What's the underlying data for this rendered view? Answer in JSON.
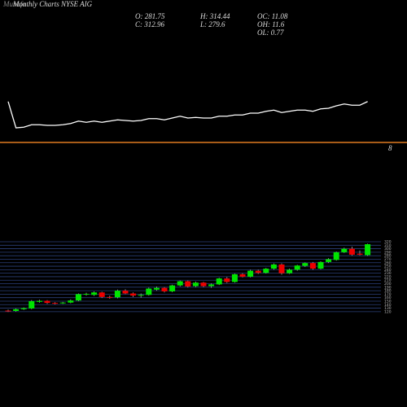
{
  "header": {
    "brand": "Munafa",
    "title": "Monthly Charts NYSE AIG",
    "stats": [
      {
        "label": "O:",
        "value": 281.75
      },
      {
        "label": "H:",
        "value": 314.44
      },
      {
        "label": "OC:",
        "value": 11.08
      },
      {
        "label": "C:",
        "value": 312.96
      },
      {
        "label": "L:",
        "value": 279.6
      },
      {
        "label": "OH:",
        "value": 11.6
      },
      {
        "label": "OL:",
        "value": 0.77
      }
    ]
  },
  "chart_data": [
    {
      "type": "line",
      "color": "#ffffff",
      "ylim": [
        0,
        100
      ],
      "annotation": "8",
      "values": [
        67,
        24,
        25,
        29,
        29,
        28,
        28,
        29,
        31,
        35,
        33,
        35,
        33,
        35,
        37,
        36,
        35,
        36,
        39,
        39,
        37,
        40,
        43,
        40,
        41,
        40,
        40,
        43,
        43,
        45,
        45,
        48,
        48,
        51,
        53,
        49,
        51,
        53,
        53,
        51,
        55,
        56,
        60,
        63,
        61,
        61,
        67
      ]
    },
    {
      "type": "candlestick",
      "up_color": "#00e400",
      "down_color": "#ee0000",
      "grid": true,
      "ylim": [
        115,
        320
      ],
      "yticks": [
        120,
        130,
        140,
        150,
        160,
        170,
        180,
        190,
        200,
        210,
        220,
        230,
        240,
        250,
        260,
        270,
        280,
        290,
        300,
        310,
        320
      ],
      "open": [
        123,
        122,
        127,
        129,
        148,
        151,
        145,
        144,
        146,
        152,
        170,
        168,
        175,
        162,
        161,
        180,
        172,
        166,
        168,
        183,
        188,
        178,
        195,
        207,
        193,
        203,
        193,
        198,
        215,
        205,
        227,
        220,
        237,
        231,
        243,
        255,
        230,
        240,
        251,
        259,
        243,
        262,
        268,
        290,
        300,
        286,
        281.75
      ],
      "high": [
        126,
        129,
        132,
        153,
        154,
        153,
        147,
        148,
        155,
        172,
        174,
        178,
        177,
        166,
        183,
        184,
        175,
        172,
        189,
        192,
        190,
        197,
        209,
        209,
        206,
        205,
        201,
        217,
        219,
        229,
        230,
        240,
        240,
        245,
        258,
        258,
        243,
        254,
        261,
        262,
        264,
        273,
        292,
        303,
        306,
        295,
        314.44
      ],
      "low": [
        119,
        120,
        125,
        127,
        146,
        142,
        141,
        142,
        144,
        150,
        166,
        165,
        159,
        157,
        158,
        170,
        162,
        160,
        166,
        180,
        175,
        176,
        192,
        189,
        190,
        190,
        188,
        196,
        202,
        203,
        218,
        218,
        228,
        229,
        240,
        226,
        228,
        237,
        248,
        240,
        241,
        259,
        266,
        288,
        280,
        281,
        279.6
      ],
      "close": [
        121,
        127,
        130,
        150,
        151,
        145,
        144,
        146,
        152,
        170,
        171,
        175,
        162,
        161,
        180,
        172,
        166,
        168,
        186,
        188,
        178,
        195,
        207,
        192,
        203,
        193,
        198,
        215,
        205,
        227,
        220,
        237,
        231,
        243,
        255,
        230,
        240,
        252,
        259,
        243,
        262,
        270,
        290,
        300,
        283,
        283,
        312.96
      ]
    }
  ]
}
